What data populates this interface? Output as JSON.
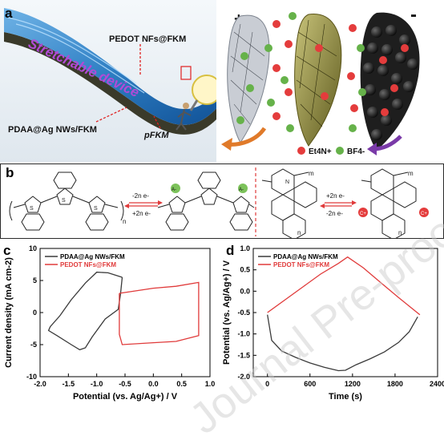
{
  "panel_a": {
    "label": "a",
    "device_text": "Stretchable device",
    "cathode_label": "PEDOT NFs@FKM",
    "anode_label": "PDAA@Ag NWs/FKM",
    "substrate_label": "pFKM",
    "plus_sign": "+",
    "minus_sign": "-",
    "legend_cation": "Et4N+",
    "legend_anion": "BF4-"
  },
  "panel_b": {
    "label": "b",
    "left_arrow_top": "-2n e-",
    "left_arrow_bottom": "+2n e-",
    "right_arrow_top": "+2n e-",
    "right_arrow_bottom": "-2n e-",
    "anion_symbol": "A-",
    "cation_symbol": "C+",
    "subscript_m": "m",
    "subscript_n": "n"
  },
  "chart_data": [
    {
      "panel": "c",
      "type": "line",
      "xlabel": "Potential (vs. Ag/Ag+) / V",
      "ylabel": "Current density (mA cm-2)",
      "xlim": [
        -2.0,
        1.0
      ],
      "ylim": [
        -10,
        10
      ],
      "xticks": [
        "-2.0",
        "-1.5",
        "-1.0",
        "-0.5",
        "0.0",
        "0.5",
        "1.0"
      ],
      "yticks": [
        "-10",
        "-5",
        "0",
        "5",
        "10"
      ],
      "legend_position": "top-left",
      "series": [
        {
          "name": "PDAA@Ag NWs/FKM",
          "color": "#3a3a3a",
          "points": [
            [
              -0.55,
              5.5
            ],
            [
              -0.8,
              6.2
            ],
            [
              -1.0,
              6.3
            ],
            [
              -1.2,
              4.6
            ],
            [
              -1.45,
              2.0
            ],
            [
              -1.65,
              -0.5
            ],
            [
              -1.82,
              -2.2
            ],
            [
              -1.85,
              -2.8
            ],
            [
              -1.7,
              -3.6
            ],
            [
              -1.45,
              -5.0
            ],
            [
              -1.3,
              -5.8
            ],
            [
              -1.2,
              -5.5
            ],
            [
              -1.08,
              -3.8
            ],
            [
              -0.85,
              -1.0
            ],
            [
              -0.62,
              0.5
            ],
            [
              -0.58,
              2.8
            ],
            [
              -0.55,
              5.5
            ]
          ]
        },
        {
          "name": "PEDOT NFs@FKM",
          "color": "#e03a3a",
          "points": [
            [
              -0.6,
              3.0
            ],
            [
              0.0,
              3.8
            ],
            [
              0.4,
              4.1
            ],
            [
              0.8,
              4.7
            ],
            [
              0.8,
              -3.6
            ],
            [
              0.4,
              -4.5
            ],
            [
              0.0,
              -4.7
            ],
            [
              -0.55,
              -5.0
            ],
            [
              -0.6,
              -3.4
            ],
            [
              -0.6,
              3.0
            ]
          ]
        }
      ]
    },
    {
      "panel": "d",
      "type": "line",
      "xlabel": "Time (s)",
      "ylabel": "Potential (vs. Ag/Ag+) / V",
      "xlim": [
        -200,
        2400
      ],
      "ylim": [
        -2.0,
        1.0
      ],
      "xticks": [
        "0",
        "600",
        "1200",
        "1800",
        "2400"
      ],
      "yticks": [
        "-2.0",
        "-1.5",
        "-1.0",
        "-0.5",
        "0.0",
        "0.5",
        "1.0"
      ],
      "legend_position": "top-left",
      "series": [
        {
          "name": "PDAA@Ag NWs/FKM",
          "color": "#3a3a3a",
          "points": [
            [
              0,
              -0.55
            ],
            [
              60,
              -1.15
            ],
            [
              200,
              -1.4
            ],
            [
              400,
              -1.55
            ],
            [
              600,
              -1.68
            ],
            [
              800,
              -1.78
            ],
            [
              1000,
              -1.86
            ],
            [
              1100,
              -1.85
            ],
            [
              1250,
              -1.72
            ],
            [
              1450,
              -1.58
            ],
            [
              1650,
              -1.42
            ],
            [
              1850,
              -1.2
            ],
            [
              2000,
              -0.95
            ],
            [
              2120,
              -0.6
            ]
          ]
        },
        {
          "name": "PEDOT NFs@FKM",
          "color": "#e03a3a",
          "points": [
            [
              0,
              -0.5
            ],
            [
              250,
              -0.2
            ],
            [
              500,
              0.1
            ],
            [
              750,
              0.4
            ],
            [
              1000,
              0.65
            ],
            [
              1130,
              0.8
            ],
            [
              1350,
              0.55
            ],
            [
              1600,
              0.2
            ],
            [
              1850,
              -0.15
            ],
            [
              2150,
              -0.55
            ]
          ]
        }
      ]
    }
  ],
  "panel_c_label": "c",
  "panel_d_label": "d",
  "watermark": "Journal Pre-proof"
}
